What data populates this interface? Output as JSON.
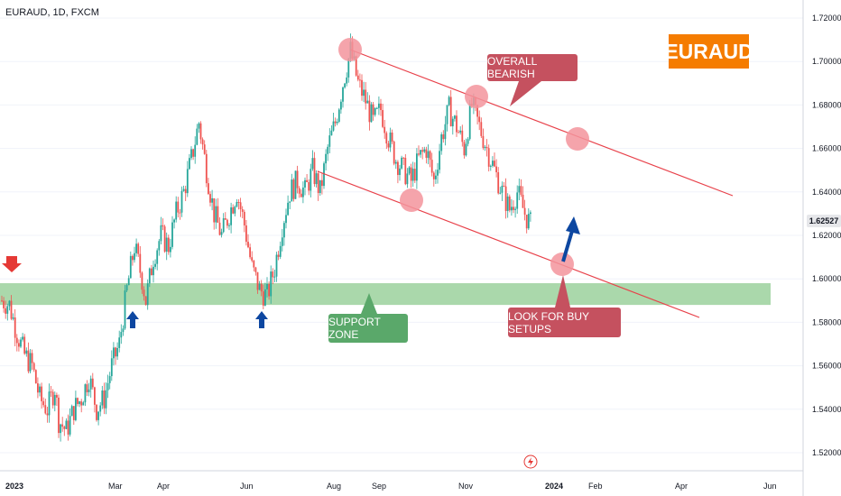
{
  "header": {
    "symbol": "EURAUD, 1D, FXCM"
  },
  "badge": {
    "text": "EURAUD",
    "color": "#f57c00"
  },
  "annotations": {
    "overall_bearish": "OVERALL BEARISH",
    "support_zone": "SUPPORT ZONE",
    "buy_setups": "LOOK FOR BUY SETUPS"
  },
  "colors": {
    "up": "#26a69a",
    "down": "#ef5350",
    "channel": "#e8414a",
    "zone": "#a5d6a7",
    "marker": "#f3949c",
    "arrow_blue": "#0d47a1",
    "arrow_red": "#e53935"
  },
  "last_price": "1.62527",
  "chart_data": {
    "type": "candlestick",
    "ylim": [
      1.51,
      1.725
    ],
    "y_ticks": [
      "1.72000",
      "1.70000",
      "1.68000",
      "1.66000",
      "1.64000",
      "1.62000",
      "1.60000",
      "1.58000",
      "1.56000",
      "1.54000",
      "1.52000"
    ],
    "x_ticks": [
      "2023",
      "Mar",
      "Apr",
      "Jun",
      "Aug",
      "Sep",
      "Nov",
      "2024",
      "Feb",
      "Apr",
      "Jun"
    ],
    "support_zone": [
      1.588,
      1.598
    ],
    "price_path": [
      [
        0,
        1.59
      ],
      [
        4,
        1.588
      ],
      [
        8,
        1.575
      ],
      [
        12,
        1.565
      ],
      [
        16,
        1.56
      ],
      [
        20,
        1.545
      ],
      [
        24,
        1.54
      ],
      [
        28,
        1.55
      ],
      [
        30,
        1.535
      ],
      [
        34,
        1.53
      ],
      [
        38,
        1.54
      ],
      [
        42,
        1.545
      ],
      [
        46,
        1.555
      ],
      [
        50,
        1.54
      ],
      [
        54,
        1.545
      ],
      [
        58,
        1.56
      ],
      [
        62,
        1.57
      ],
      [
        66,
        1.595
      ],
      [
        70,
        1.615
      ],
      [
        74,
        1.6
      ],
      [
        76,
        1.59
      ],
      [
        80,
        1.61
      ],
      [
        84,
        1.62
      ],
      [
        88,
        1.615
      ],
      [
        92,
        1.63
      ],
      [
        96,
        1.64
      ],
      [
        100,
        1.655
      ],
      [
        104,
        1.672
      ],
      [
        108,
        1.65
      ],
      [
        112,
        1.63
      ],
      [
        116,
        1.62
      ],
      [
        120,
        1.63
      ],
      [
        124,
        1.64
      ],
      [
        128,
        1.625
      ],
      [
        132,
        1.605
      ],
      [
        136,
        1.595
      ],
      [
        140,
        1.592
      ],
      [
        144,
        1.605
      ],
      [
        148,
        1.625
      ],
      [
        152,
        1.64
      ],
      [
        156,
        1.645
      ],
      [
        160,
        1.64
      ],
      [
        164,
        1.65
      ],
      [
        168,
        1.64
      ],
      [
        172,
        1.66
      ],
      [
        176,
        1.672
      ],
      [
        180,
        1.69
      ],
      [
        184,
        1.705
      ],
      [
        188,
        1.69
      ],
      [
        192,
        1.682
      ],
      [
        196,
        1.672
      ],
      [
        200,
        1.678
      ],
      [
        204,
        1.665
      ],
      [
        208,
        1.655
      ],
      [
        212,
        1.65
      ],
      [
        216,
        1.645
      ],
      [
        220,
        1.655
      ],
      [
        224,
        1.66
      ],
      [
        228,
        1.645
      ],
      [
        232,
        1.665
      ],
      [
        236,
        1.678
      ],
      [
        240,
        1.67
      ],
      [
        244,
        1.66
      ],
      [
        248,
        1.68
      ],
      [
        252,
        1.67
      ],
      [
        256,
        1.66
      ],
      [
        260,
        1.65
      ],
      [
        264,
        1.64
      ],
      [
        268,
        1.632
      ],
      [
        272,
        1.64
      ],
      [
        276,
        1.63
      ],
      [
        279,
        1.625
      ]
    ]
  }
}
